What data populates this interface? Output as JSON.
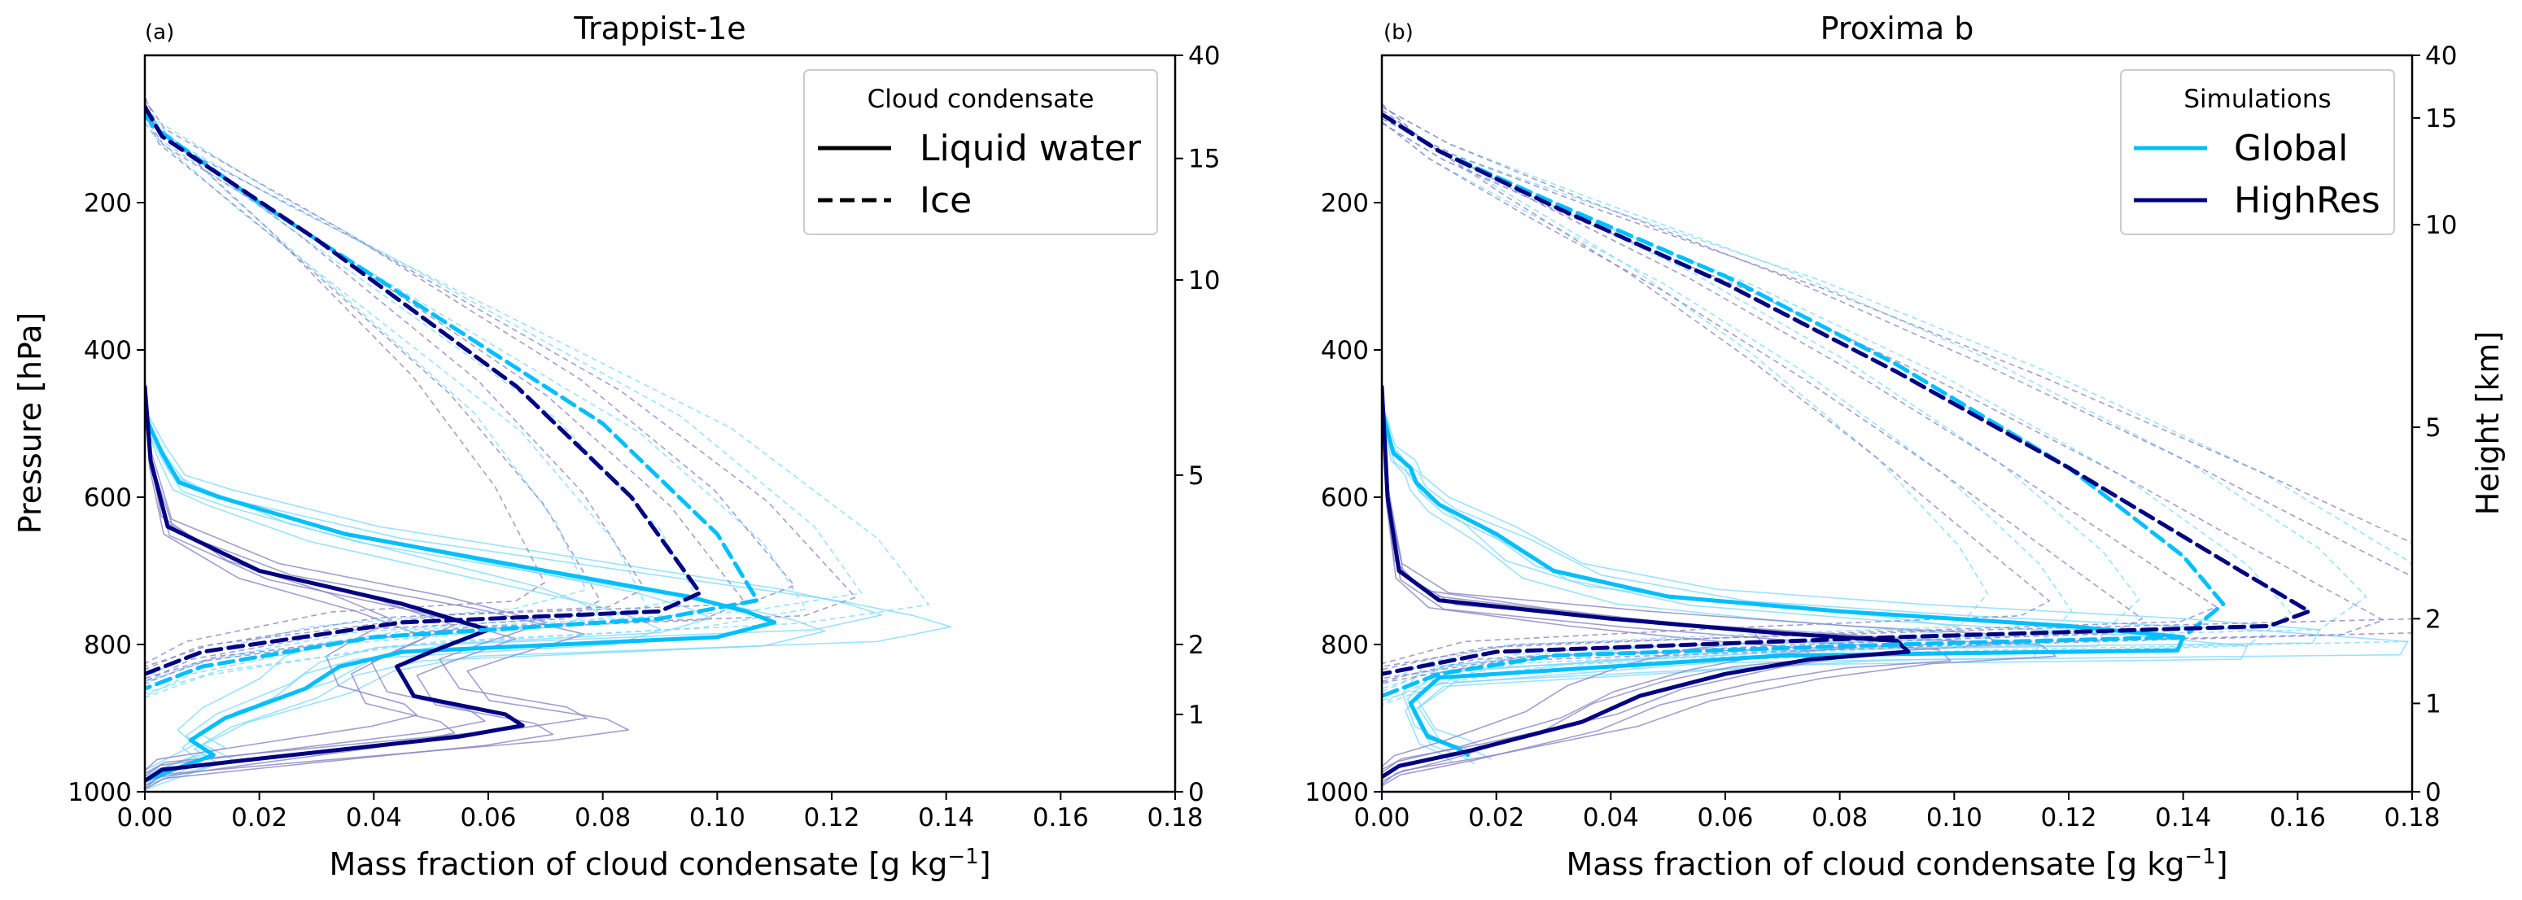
{
  "chart_data": [
    {
      "type": "line",
      "panel_label": "(a)",
      "title": "Trappist-1e",
      "xlabel": "Mass fraction of cloud condensate [g kg",
      "xlabel_sup": "−1",
      "xlabel_end": "]",
      "ylabel": "Pressure [hPa]",
      "ylabel_right": "",
      "xlim": [
        0,
        0.18
      ],
      "ylim": [
        1000,
        0
      ],
      "xticks": [
        0.0,
        0.02,
        0.04,
        0.06,
        0.08,
        0.1,
        0.12,
        0.14,
        0.16,
        0.18
      ],
      "xtick_labels": [
        "0.00",
        "0.02",
        "0.04",
        "0.06",
        "0.08",
        "0.10",
        "0.12",
        "0.14",
        "0.16",
        "0.18"
      ],
      "yticks": [
        200,
        400,
        600,
        800,
        1000
      ],
      "ytick_labels": [
        "200",
        "400",
        "600",
        "800",
        "1000"
      ],
      "height_ticks": [
        {
          "label": "40",
          "pressure": 0
        },
        {
          "label": "15",
          "pressure": 140
        },
        {
          "label": "10",
          "pressure": 305
        },
        {
          "label": "5",
          "pressure": 570
        },
        {
          "label": "2",
          "pressure": 800
        },
        {
          "label": "1",
          "pressure": 895
        },
        {
          "label": "0",
          "pressure": 1000
        }
      ],
      "legend": {
        "title": "Cloud condensate",
        "placement": "top-right",
        "entries": [
          {
            "label": "Liquid water",
            "style": "solid",
            "color": "#000000"
          },
          {
            "label": "Ice",
            "style": "dashed",
            "color": "#000000"
          }
        ]
      },
      "series": [
        {
          "name": "Global liquid water mean",
          "color": "#00bfff",
          "style": "solid",
          "x": [
            0.0,
            0.003,
            0.006,
            0.013,
            0.035,
            0.07,
            0.095,
            0.105,
            0.11,
            0.1,
            0.045,
            0.034,
            0.028,
            0.014,
            0.008,
            0.012,
            0.005,
            0.0
          ],
          "y": [
            490,
            540,
            580,
            600,
            650,
            700,
            735,
            755,
            770,
            790,
            810,
            830,
            860,
            900,
            930,
            950,
            970,
            985
          ]
        },
        {
          "name": "HighRes liquid water mean",
          "color": "#000080",
          "style": "solid",
          "x": [
            0.0,
            0.001,
            0.004,
            0.02,
            0.045,
            0.06,
            0.05,
            0.044,
            0.047,
            0.063,
            0.066,
            0.055,
            0.02,
            0.003,
            0.0
          ],
          "y": [
            450,
            550,
            640,
            700,
            745,
            780,
            810,
            830,
            870,
            895,
            910,
            925,
            955,
            970,
            985
          ]
        },
        {
          "name": "Global ice mean",
          "color": "#00bfff",
          "style": "dashed",
          "x": [
            0.0,
            0.002,
            0.02,
            0.05,
            0.08,
            0.1,
            0.107,
            0.09,
            0.04,
            0.01,
            0.0
          ],
          "y": [
            80,
            100,
            200,
            350,
            500,
            650,
            740,
            765,
            790,
            830,
            860
          ]
        },
        {
          "name": "HighRes ice mean",
          "color": "#000080",
          "style": "dashed",
          "x": [
            0.0,
            0.003,
            0.03,
            0.065,
            0.085,
            0.097,
            0.09,
            0.045,
            0.01,
            0.0
          ],
          "y": [
            70,
            110,
            250,
            450,
            600,
            730,
            755,
            770,
            810,
            840
          ]
        }
      ]
    },
    {
      "type": "line",
      "panel_label": "(b)",
      "title": "Proxima b",
      "xlabel": "Mass fraction of cloud condensate [g kg",
      "xlabel_sup": "−1",
      "xlabel_end": "]",
      "ylabel": "",
      "ylabel_right": "Height [km]",
      "xlim": [
        0,
        0.18
      ],
      "ylim": [
        1000,
        0
      ],
      "xticks": [
        0.0,
        0.02,
        0.04,
        0.06,
        0.08,
        0.1,
        0.12,
        0.14,
        0.16,
        0.18
      ],
      "xtick_labels": [
        "0.00",
        "0.02",
        "0.04",
        "0.06",
        "0.08",
        "0.10",
        "0.12",
        "0.14",
        "0.16",
        "0.18"
      ],
      "yticks": [
        200,
        400,
        600,
        800,
        1000
      ],
      "ytick_labels": [
        "200",
        "400",
        "600",
        "800",
        "1000"
      ],
      "height_ticks": [
        {
          "label": "40",
          "pressure": 0
        },
        {
          "label": "15",
          "pressure": 85
        },
        {
          "label": "10",
          "pressure": 230
        },
        {
          "label": "5",
          "pressure": 505
        },
        {
          "label": "2",
          "pressure": 765
        },
        {
          "label": "1",
          "pressure": 880
        },
        {
          "label": "0",
          "pressure": 1000
        }
      ],
      "legend": {
        "title": "Simulations",
        "placement": "top-right",
        "entries": [
          {
            "label": "Global",
            "style": "solid",
            "color": "#00bfff"
          },
          {
            "label": "HighRes",
            "style": "solid",
            "color": "#000080"
          }
        ]
      },
      "series": [
        {
          "name": "Global liquid water mean",
          "color": "#00bfff",
          "style": "solid",
          "x": [
            0.0,
            0.002,
            0.005,
            0.006,
            0.01,
            0.02,
            0.03,
            0.05,
            0.08,
            0.12,
            0.14,
            0.139,
            0.07,
            0.01,
            0.005,
            0.008,
            0.013,
            0.015
          ],
          "y": [
            480,
            540,
            560,
            580,
            610,
            650,
            700,
            735,
            755,
            775,
            790,
            808,
            815,
            845,
            880,
            925,
            940,
            950
          ]
        },
        {
          "name": "HighRes liquid water mean",
          "color": "#000080",
          "style": "solid",
          "x": [
            0.0,
            0.001,
            0.003,
            0.01,
            0.04,
            0.07,
            0.09,
            0.092,
            0.075,
            0.06,
            0.045,
            0.035,
            0.015,
            0.003,
            0.0
          ],
          "y": [
            450,
            600,
            700,
            740,
            765,
            785,
            795,
            810,
            820,
            840,
            870,
            905,
            945,
            965,
            980
          ]
        },
        {
          "name": "Global ice mean",
          "color": "#00bfff",
          "style": "dashed",
          "x": [
            0.0,
            0.01,
            0.03,
            0.06,
            0.09,
            0.12,
            0.14,
            0.147,
            0.14,
            0.09,
            0.03,
            0.01,
            0.0
          ],
          "y": [
            80,
            130,
            200,
            300,
            420,
            560,
            680,
            745,
            790,
            800,
            815,
            840,
            870
          ]
        },
        {
          "name": "HighRes ice mean",
          "color": "#000080",
          "style": "dashed",
          "x": [
            0.0,
            0.01,
            0.03,
            0.06,
            0.09,
            0.12,
            0.15,
            0.162,
            0.155,
            0.09,
            0.02,
            0.0
          ],
          "y": [
            80,
            130,
            205,
            310,
            430,
            560,
            700,
            755,
            775,
            790,
            810,
            840
          ]
        }
      ]
    }
  ]
}
